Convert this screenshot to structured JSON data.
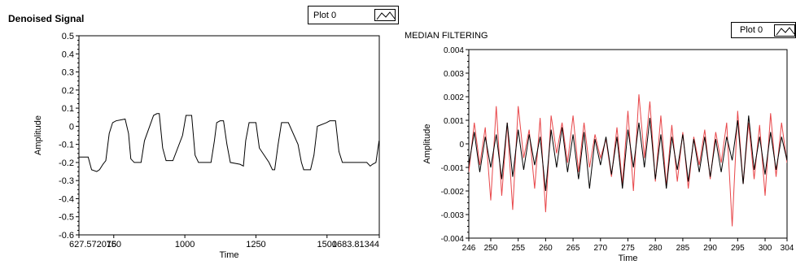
{
  "colors": {
    "background": "#ffffff",
    "plot_line": "#000000",
    "red_line": "#e8474a"
  },
  "left_graph": {
    "title": "Denoised Signal",
    "legend_label": "Plot 0"
  },
  "right_graph": {
    "title": "MEDIAN FILTERING",
    "legend_label": "Plot 0"
  },
  "chart_data": [
    {
      "type": "line",
      "title": "Denoised Signal",
      "xlabel": "Time",
      "ylabel": "Amplitude",
      "xlim": [
        627.572016,
        1683.81344
      ],
      "ylim": [
        -0.6,
        0.5
      ],
      "x_tick_labels": [
        "627.572016",
        "750",
        "1000",
        "1250",
        "1500",
        "1683.81344"
      ],
      "x_ticks": [
        627.572016,
        750,
        1000,
        1250,
        1500,
        1683.81344
      ],
      "y_ticks": [
        0.5,
        0.4,
        0.3,
        0.2,
        0.1,
        0,
        -0.1,
        -0.2,
        -0.3,
        -0.4,
        -0.5,
        -0.6
      ],
      "legend": [
        "Plot 0"
      ],
      "series": [
        {
          "name": "Plot 0",
          "color": "#000000",
          "x": [
            628,
            660,
            672,
            690,
            700,
            712,
            722,
            734,
            746,
            758,
            790,
            802,
            810,
            822,
            834,
            846,
            858,
            890,
            902,
            910,
            922,
            934,
            946,
            958,
            992,
            1004,
            1012,
            1024,
            1036,
            1048,
            1060,
            1092,
            1104,
            1112,
            1124,
            1136,
            1148,
            1160,
            1194,
            1206,
            1214,
            1226,
            1238,
            1250,
            1262,
            1296,
            1308,
            1316,
            1328,
            1340,
            1352,
            1364,
            1398,
            1410,
            1418,
            1430,
            1442,
            1454,
            1466,
            1498,
            1510,
            1518,
            1530,
            1542,
            1554,
            1566,
            1640,
            1652,
            1660,
            1672,
            1683
          ],
          "y": [
            -0.17,
            -0.17,
            -0.24,
            -0.25,
            -0.24,
            -0.21,
            -0.19,
            -0.04,
            0.02,
            0.03,
            0.04,
            -0.04,
            -0.18,
            -0.2,
            -0.2,
            -0.2,
            -0.08,
            0.06,
            0.07,
            0.07,
            -0.12,
            -0.19,
            -0.19,
            -0.19,
            -0.05,
            0.06,
            0.06,
            0.06,
            -0.16,
            -0.2,
            -0.2,
            -0.2,
            -0.08,
            0.02,
            0.03,
            0.03,
            -0.1,
            -0.2,
            -0.21,
            -0.22,
            -0.08,
            0.02,
            0.02,
            0.02,
            -0.12,
            -0.2,
            -0.24,
            -0.24,
            -0.1,
            0.02,
            0.02,
            0.02,
            -0.1,
            -0.2,
            -0.24,
            -0.24,
            -0.24,
            -0.16,
            0.0,
            0.02,
            0.03,
            0.03,
            0.03,
            -0.14,
            -0.2,
            -0.2,
            -0.2,
            -0.22,
            -0.21,
            -0.2,
            -0.08
          ]
        }
      ]
    },
    {
      "type": "line",
      "title": "MEDIAN FILTERING",
      "xlabel": "Time",
      "ylabel": "Amplitude",
      "xlim": [
        246,
        304
      ],
      "ylim": [
        -0.004,
        0.004
      ],
      "x_tick_labels": [
        "246",
        "250",
        "255",
        "260",
        "265",
        "270",
        "275",
        "280",
        "285",
        "290",
        "295",
        "300",
        "304"
      ],
      "x_ticks": [
        246,
        250,
        255,
        260,
        265,
        270,
        275,
        280,
        285,
        290,
        295,
        300,
        304
      ],
      "y_ticks": [
        0.004,
        0.003,
        0.002,
        0.001,
        0,
        -0.001,
        -0.002,
        -0.003,
        -0.004
      ],
      "legend": [
        "Plot 0"
      ],
      "series": [
        {
          "name": "Plot 0",
          "color": "#000000",
          "x": [
            246,
            247,
            248,
            249,
            250,
            251,
            252,
            253,
            254,
            255,
            256,
            257,
            258,
            259,
            260,
            261,
            262,
            263,
            264,
            265,
            266,
            267,
            268,
            269,
            270,
            271,
            272,
            273,
            274,
            275,
            276,
            277,
            278,
            279,
            280,
            281,
            282,
            283,
            284,
            285,
            286,
            287,
            288,
            289,
            290,
            291,
            292,
            293,
            294,
            295,
            296,
            297,
            298,
            299,
            300,
            301,
            302,
            303,
            304
          ],
          "y": [
            -0.0009,
            0.0005,
            -0.0012,
            0.0003,
            -0.001,
            0.0004,
            -0.0015,
            0.0009,
            -0.0014,
            0.0006,
            -0.0011,
            0.0004,
            -0.0009,
            0.0003,
            -0.002,
            0.0006,
            -0.001,
            0.0007,
            -0.0012,
            0.0004,
            -0.0015,
            0.0005,
            -0.0019,
            0.0002,
            -0.0009,
            0.0003,
            -0.0013,
            0.0003,
            -0.0019,
            0.0006,
            -0.001,
            0.0009,
            -0.001,
            0.0011,
            -0.0015,
            0.0004,
            -0.0019,
            0.0003,
            -0.0011,
            0.0004,
            -0.0016,
            0.0002,
            -0.0012,
            0.0003,
            -0.0014,
            0.0002,
            -0.0012,
            0.0003,
            -0.0007,
            0.001,
            -0.0017,
            0.0012,
            -0.0011,
            0.0003,
            -0.0013,
            0.0005,
            -0.0011,
            0.0003,
            -0.0007
          ]
        },
        {
          "name": "",
          "color": "#e8474a",
          "x": [
            246,
            247,
            248,
            249,
            250,
            251,
            252,
            253,
            254,
            255,
            256,
            257,
            258,
            259,
            260,
            261,
            262,
            263,
            264,
            265,
            266,
            267,
            268,
            269,
            270,
            271,
            272,
            273,
            274,
            275,
            276,
            277,
            278,
            279,
            280,
            281,
            282,
            283,
            284,
            285,
            286,
            287,
            288,
            289,
            290,
            291,
            292,
            293,
            294,
            295,
            296,
            297,
            298,
            299,
            300,
            301,
            302,
            303,
            304
          ],
          "y": [
            -0.0012,
            0.0009,
            -0.0009,
            0.0007,
            -0.0024,
            0.0016,
            -0.0022,
            0.0009,
            -0.0028,
            0.0016,
            -0.0006,
            0.0006,
            -0.0019,
            0.0011,
            -0.0029,
            0.0012,
            -0.0004,
            0.0009,
            -0.0008,
            0.0012,
            -0.0012,
            0.0009,
            -0.001,
            0.0004,
            -0.0006,
            0.0002,
            -0.0014,
            0.0007,
            -0.0017,
            0.0014,
            -0.002,
            0.0021,
            -0.0006,
            0.0018,
            -0.0016,
            0.0012,
            -0.0018,
            0.0008,
            -0.0016,
            0.0005,
            -0.0019,
            0.0003,
            -0.0009,
            0.0006,
            -0.0015,
            0.0005,
            -0.0008,
            0.0009,
            -0.0035,
            0.0014,
            -0.0017,
            0.0009,
            -0.0015,
            0.0008,
            -0.0022,
            0.0013,
            -0.0014,
            0.0009,
            -0.0008
          ]
        }
      ]
    }
  ]
}
